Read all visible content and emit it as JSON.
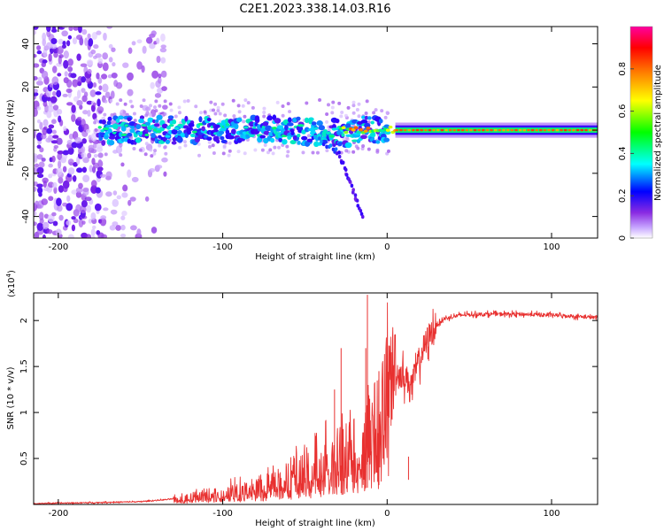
{
  "figure": {
    "title": "C2E1.2023.338.14.03.R16"
  },
  "chart_data": [
    {
      "type": "heatmap",
      "title": "C2E1.2023.338.14.03.R16",
      "xlabel": "Height of straight line (km)",
      "ylabel": "Frequency (Hz)",
      "xlim": [
        -215,
        128
      ],
      "ylim": [
        -50,
        48
      ],
      "xticks": [
        -200,
        -100,
        0,
        100
      ],
      "yticks": [
        -40,
        -20,
        0,
        20,
        40
      ],
      "colorbar": {
        "label": "Normalized spectral amplitude",
        "range": [
          0,
          1
        ],
        "ticks": [
          0.0,
          0.2,
          0.4,
          0.6,
          0.8
        ],
        "colors": [
          "#ffffff",
          "#8a2be2",
          "#0000ff",
          "#00ffff",
          "#00ff00",
          "#ffff00",
          "#ff8000",
          "#ff0000",
          "#ff00a0"
        ]
      },
      "features": {
        "dominant_line_hz": 0,
        "noise_region_below_km": -135,
        "scattered_band_km": [
          -175,
          0
        ],
        "scattered_band_hz": [
          -8,
          8
        ],
        "descending_tail": [
          [
            -45,
            -3
          ],
          [
            -30,
            -10
          ],
          [
            -22,
            -25
          ],
          [
            -15,
            -40
          ]
        ],
        "stable_line_from_km": 5
      }
    },
    {
      "type": "line",
      "title": "",
      "xlabel": "Height of straight line (km)",
      "ylabel": "SNR (10 * v/v)",
      "y_scale_label": "(x10",
      "y_scale_exponent": "4",
      "xlim": [
        -215,
        128
      ],
      "ylim": [
        0,
        2.3
      ],
      "xticks": [
        -200,
        -100,
        0,
        100
      ],
      "yticks": [
        0.5,
        1.0,
        1.5,
        2.0
      ],
      "series": [
        {
          "name": "SNR",
          "color": "#e8302f",
          "x": [
            -215,
            -180,
            -150,
            -130,
            -110,
            -90,
            -70,
            -55,
            -45,
            -35,
            -25,
            -20,
            -15,
            -10,
            -5,
            0,
            5,
            10,
            15,
            20,
            25,
            30,
            35,
            45,
            60,
            80,
            100,
            110,
            120,
            128
          ],
          "values": [
            0.01,
            0.02,
            0.03,
            0.06,
            0.12,
            0.17,
            0.26,
            0.35,
            0.42,
            0.55,
            0.65,
            0.75,
            0.85,
            0.95,
            1.05,
            1.3,
            1.45,
            1.4,
            1.3,
            1.6,
            1.82,
            1.95,
            2.02,
            2.06,
            2.07,
            2.07,
            2.06,
            2.05,
            2.04,
            2.03
          ],
          "spikes": [
            [
              -32,
              1.25
            ],
            [
              -28,
              1.7
            ],
            [
              -13,
              1.7
            ],
            [
              -12,
              2.28
            ],
            [
              -5,
              1.45
            ],
            [
              13,
              0.52
            ]
          ]
        }
      ]
    }
  ]
}
